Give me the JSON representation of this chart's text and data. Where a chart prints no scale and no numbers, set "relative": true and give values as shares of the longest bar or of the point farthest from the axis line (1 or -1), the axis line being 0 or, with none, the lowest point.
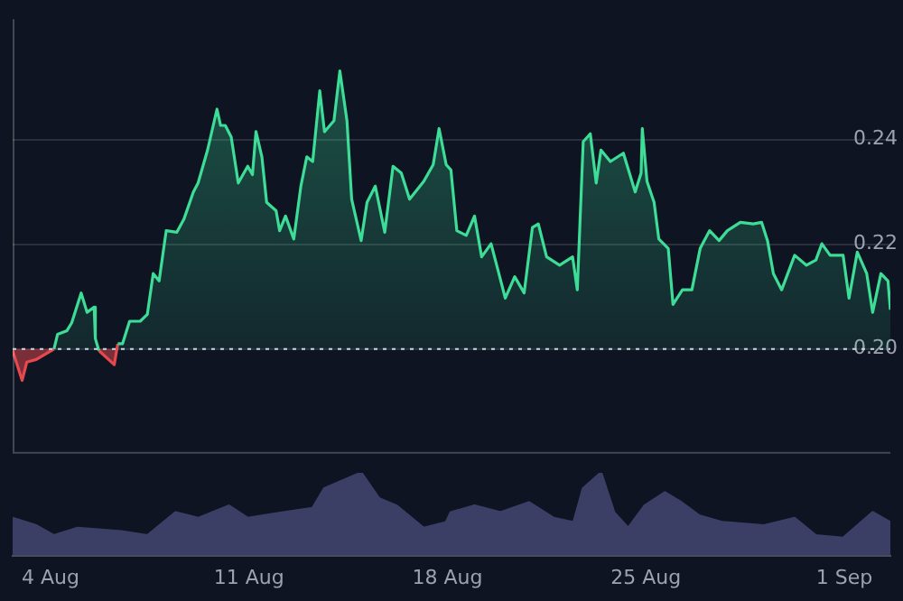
{
  "chart_data": [
    {
      "type": "area",
      "x": [
        "--08-02T16:00",
        "--08-03T00:00",
        "--08-03T04:00",
        "--08-03T12:00",
        "--08-04T03:00",
        "--08-04T06:00",
        "--08-04T14:00",
        "--08-04T18:00",
        "--08-05T02:00",
        "--08-05T07:00",
        "--08-05T13:00",
        "--08-05T14:00",
        "--08-05T17:00",
        "--08-06T06:00",
        "--08-06T09:00",
        "--08-06T13:00",
        "--08-06T19:00",
        "--08-07T04:00",
        "--08-07T10:00",
        "--08-07T15:00",
        "--08-07T20:00",
        "--08-08T02:00",
        "--08-08T11:00",
        "--08-08T17:00",
        "--08-09T01:00",
        "--08-09T05:00",
        "--08-09T13:00",
        "--08-09T21:00",
        "--08-10T00:00",
        "--08-10T04:00",
        "--08-10T09:00",
        "--08-10T15:00",
        "--08-10T23:00",
        "--08-11T03:00",
        "--08-11T06:00",
        "--08-11T11:00",
        "--08-11T15:00",
        "--08-11T23:00",
        "--08-12T02:00",
        "--08-12T07:00",
        "--08-12T14:00",
        "--08-12T20:00",
        "--08-13T01:00",
        "--08-13T06:00",
        "--08-13T12:00",
        "--08-13T16:00",
        "--08-14T00:00",
        "--08-14T05:00",
        "--08-14T11:00",
        "--08-14T15:00",
        "--08-14T23:00",
        "--08-15T04:00",
        "--08-15T11:00",
        "--08-15T19:00",
        "--08-16T02:00",
        "--08-16T09:00",
        "--08-16T16:00",
        "--08-17T04:00",
        "--08-17T12:00",
        "--08-17T17:00",
        "--08-17T23:00",
        "--08-18T03:00",
        "--08-18T08:00",
        "--08-18T16:00",
        "--08-18T23:00",
        "--08-19T05:00",
        "--08-19T13:00",
        "--08-19T21:00",
        "--08-20T01:00",
        "--08-20T09:00",
        "--08-20T17:00",
        "--08-21T00:00",
        "--08-21T05:00",
        "--08-21T12:00",
        "--08-21T23:00",
        "--08-22T10:00",
        "--08-22T14:00",
        "--08-22T19:00",
        "--08-23T01:00",
        "--08-23T06:00",
        "--08-23T10:00",
        "--08-23T18:00",
        "--08-24T05:00",
        "--08-24T15:00",
        "--08-24T20:00",
        "--08-24T21:00",
        "--08-25T01:00",
        "--08-25T07:00",
        "--08-25T11:00",
        "--08-25T19:00",
        "--08-25T23:00",
        "--08-26T07:00",
        "--08-26T15:00",
        "--08-26T22:00",
        "--08-27T06:00",
        "--08-27T14:00",
        "--08-27T21:00",
        "--08-28T08:00",
        "--08-28T19:00",
        "--08-29T02:00",
        "--08-29T07:00",
        "--08-29T12:00",
        "--08-29T19:00",
        "--08-30T06:00",
        "--08-30T16:00",
        "--08-31T00:00",
        "--08-31T05:00",
        "--08-31T12:00",
        "--08-31T23:00",
        "--09-01T04:00",
        "--09-01T11:00",
        "--09-01T19:00",
        "--09-02T00:00",
        "--09-02T07:00",
        "--09-02T13:00",
        "--09-02T15:00"
      ],
      "series": [
        {
          "color": "#3ddc97",
          "values": [
            null,
            null,
            null,
            null,
            0.2,
            0.2028,
            0.2035,
            0.205,
            0.2107,
            0.207,
            0.208,
            0.202,
            0.1997,
            null,
            0.201,
            0.201,
            0.2053,
            0.2053,
            0.2066,
            0.2144,
            0.213,
            0.2226,
            0.2223,
            0.2248,
            0.23,
            0.2317,
            0.238,
            0.2458,
            0.2427,
            0.2427,
            0.2405,
            0.2317,
            0.2349,
            0.2333,
            0.2415,
            0.2367,
            0.228,
            0.2264,
            0.2226,
            0.2254,
            0.221,
            0.2311,
            0.2367,
            0.2358,
            0.2493,
            0.2415,
            0.2436,
            0.2531,
            0.2436,
            0.2286,
            0.2207,
            0.228,
            0.2311,
            0.2223,
            0.2349,
            0.2336,
            0.2286,
            0.232,
            0.2352,
            0.2421,
            0.2352,
            0.2342,
            0.2226,
            0.2217,
            0.2254,
            0.2176,
            0.2201,
            0.2132,
            0.2097,
            0.2138,
            0.2107,
            0.2232,
            0.2239,
            0.2176,
            0.216,
            0.2176,
            0.2113,
            0.2396,
            0.2411,
            0.2317,
            0.238,
            0.2358,
            0.2374,
            0.23,
            0.2336,
            0.2421,
            0.232,
            0.228,
            0.221,
            0.2192,
            0.2085,
            0.2113,
            0.2113,
            0.2192,
            0.2226,
            0.2207,
            0.2226,
            0.2242,
            0.2239,
            0.2242,
            0.2207,
            0.2144,
            0.2113,
            0.2179,
            0.216,
            0.217,
            0.2201,
            0.2179,
            0.2179,
            0.2097,
            0.2185,
            0.2144,
            0.207,
            0.2144,
            0.213,
            0.2075
          ]
        },
        {
          "color": "#e5484d",
          "values": [
            0.1997,
            0.194,
            0.1975,
            0.198,
            0.2,
            null,
            null,
            null,
            null,
            null,
            null,
            null,
            0.1997,
            0.197,
            0.201,
            null,
            null,
            null,
            null,
            null,
            null,
            null,
            null,
            null,
            null,
            null,
            null,
            null,
            null,
            null,
            null,
            null,
            null,
            null,
            null,
            null,
            null,
            null,
            null,
            null,
            null,
            null,
            null,
            null,
            null,
            null,
            null,
            null,
            null,
            null,
            null,
            null,
            null,
            null,
            null,
            null,
            null,
            null,
            null,
            null,
            null,
            null,
            null,
            null,
            null,
            null,
            null,
            null,
            null,
            null,
            null,
            null,
            null,
            null,
            null,
            null,
            null,
            null,
            null,
            null,
            null,
            null,
            null,
            null,
            null,
            null,
            null,
            null,
            null,
            null,
            null,
            null,
            null,
            null,
            null,
            null,
            null,
            null,
            null,
            null,
            null,
            null,
            null,
            null,
            null,
            null,
            null,
            null,
            null,
            null,
            null,
            null,
            null,
            null,
            null,
            null
          ]
        }
      ],
      "xlim": [
        "--08-02T16:00",
        "--09-02T15:00"
      ],
      "ylim": [
        0.18,
        0.263
      ],
      "yticks": [
        {
          "value": 0.2,
          "label": "0.20"
        },
        0.22,
        0.24
      ],
      "grid": "y",
      "tick_labels": "y",
      "ref_lines": [
        {
          "axis": "y",
          "value": 0.2,
          "line_style": "dotted",
          "color": "#cbd5e1"
        }
      ]
    },
    {
      "type": "area",
      "relative": true,
      "color": "#3b3f66",
      "tick_labels": "x",
      "x": [
        "--08-02T16:00",
        "--08-03T12:00",
        "--08-04T03:00",
        "--08-04T23:00",
        "--08-06T12:00",
        "--08-07T10:00",
        "--08-08T10:00",
        "--08-09T05:00",
        "--08-10T07:00",
        "--08-10T23:00",
        "--08-12T05:00",
        "--08-13T06:00",
        "--08-13T16:00",
        "--08-14T23:00",
        "--08-15T14:00",
        "--08-16T05:00",
        "--08-17T04:00",
        "--08-17T23:00",
        "--08-18T03:00",
        "--08-18T23:00",
        "--08-19T21:00",
        "--08-20T21:00",
        "--08-21T18:00",
        "--08-22T11:00",
        "--08-22T19:00",
        "--08-23T10:00",
        "--08-23T21:00",
        "--08-24T09:00",
        "--08-24T23:00",
        "--08-25T16:00",
        "--08-26T06:00",
        "--08-26T21:00",
        "--08-27T17:00",
        "--08-29T04:00",
        "--08-30T06:00",
        "--08-31T00:00",
        "--08-31T23:00",
        "--09-02T00:00",
        "--09-02T15:00"
      ],
      "values": [
        0.45,
        0.36,
        0.24,
        0.33,
        0.29,
        0.24,
        0.52,
        0.45,
        0.6,
        0.45,
        0.52,
        0.57,
        0.81,
        1,
        0.69,
        0.6,
        0.33,
        0.4,
        0.52,
        0.6,
        0.52,
        0.64,
        0.45,
        0.4,
        0.81,
        1,
        0.52,
        0.33,
        0.6,
        0.76,
        0.64,
        0.48,
        0.4,
        0.36,
        0.45,
        0.24,
        0.21,
        0.52,
        0.4
      ],
      "xlim": [
        "--08-02T16:00",
        "--09-02T15:00"
      ],
      "xticks": [
        {
          "value": "--08-04",
          "label": "4 Aug"
        },
        {
          "value": "--08-11",
          "label": "11 Aug"
        },
        {
          "value": "--08-18",
          "label": "18 Aug"
        },
        {
          "value": "--08-25",
          "label": "25 Aug"
        },
        {
          "value": "--09-01",
          "label": "1 Sep"
        }
      ]
    }
  ]
}
